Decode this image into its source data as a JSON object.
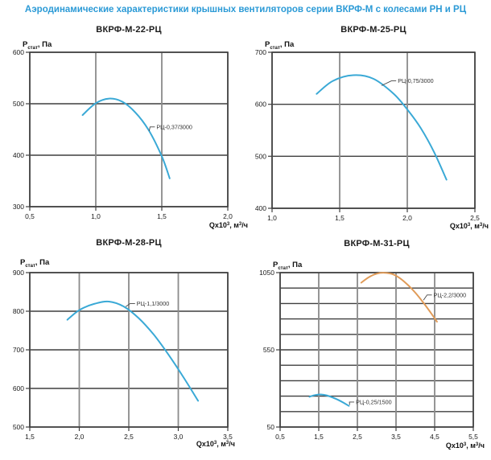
{
  "page_title": "Аэродинамические характеристики крышных вентиляторов серии ВКРФ-М с колесами РН и РЦ",
  "axis_labels": {
    "pressure": "Pстат, Па",
    "flow": "Qx10³, м³/ч",
    "pressure_segments": [
      {
        "t": "P"
      },
      {
        "t": "стат",
        "sub": true
      },
      {
        "t": ", Па"
      }
    ],
    "flow_segments": [
      {
        "t": "Qx10"
      },
      {
        "t": "3",
        "sup": true
      },
      {
        "t": ", м"
      },
      {
        "t": "3",
        "sup": true
      },
      {
        "t": "/ч"
      }
    ]
  },
  "colors": {
    "title_accent": "#2b9ad6",
    "curve_cyan": "#3aa9d6",
    "curve_orange": "#e09b58",
    "grid_horizontal": "#3f3f3f",
    "grid_vertical": "#8b8b8b"
  },
  "chart_data": [
    {
      "type": "line",
      "title": "ВКРФ-М-22-РЦ",
      "xlabel": "Qx10³, м³/ч",
      "ylabel": "Pстат, Па",
      "xlim": [
        0.5,
        2.0
      ],
      "ylim": [
        300,
        600
      ],
      "grid": true,
      "x_grid": [
        0.5,
        1.0,
        1.5,
        2.0
      ],
      "y_grid": [
        300,
        400,
        500,
        600
      ],
      "x_ticks": [
        {
          "v": 0.5,
          "label": "0,5"
        },
        {
          "v": 1.0,
          "label": "1,0"
        },
        {
          "v": 1.5,
          "label": "1,5"
        },
        {
          "v": 2.0,
          "label": "2,0"
        }
      ],
      "y_ticks": [
        {
          "v": 600,
          "label": "600"
        },
        {
          "v": 500,
          "label": "500"
        },
        {
          "v": 400,
          "label": "400"
        },
        {
          "v": 300,
          "label": "300"
        }
      ],
      "series": [
        {
          "name": "РЦ-0,37/3000",
          "color": "#3aa9d6",
          "points": [
            [
              0.9,
              478
            ],
            [
              1.0,
              501
            ],
            [
              1.1,
              510
            ],
            [
              1.2,
              504
            ],
            [
              1.3,
              483
            ],
            [
              1.4,
              449
            ],
            [
              1.5,
              398
            ],
            [
              1.56,
              355
            ]
          ],
          "label": {
            "text": "РЦ-0,37/3000",
            "x": 1.46,
            "y": 455,
            "ax": 1.405,
            "ay": 447
          }
        }
      ]
    },
    {
      "type": "line",
      "title": "ВКРФ-М-25-РЦ",
      "xlabel": "Qx10³, м³/ч",
      "ylabel": "Pстат, Па",
      "xlim": [
        1.0,
        2.5
      ],
      "ylim": [
        400,
        700
      ],
      "grid": true,
      "x_grid": [
        1.0,
        1.5,
        2.0,
        2.5
      ],
      "y_grid": [
        400,
        500,
        600,
        700
      ],
      "x_ticks": [
        {
          "v": 1.0,
          "label": "1,0"
        },
        {
          "v": 1.5,
          "label": "1,5"
        },
        {
          "v": 2.0,
          "label": "2,0"
        },
        {
          "v": 2.5,
          "label": "2,5"
        }
      ],
      "y_ticks": [
        {
          "v": 700,
          "label": "700"
        },
        {
          "v": 600,
          "label": "600"
        },
        {
          "v": 500,
          "label": "500"
        },
        {
          "v": 400,
          "label": "400"
        }
      ],
      "series": [
        {
          "name": "РЦ-0,75/3000",
          "color": "#3aa9d6",
          "points": [
            [
              1.33,
              620
            ],
            [
              1.45,
              645
            ],
            [
              1.6,
              656
            ],
            [
              1.75,
              649
            ],
            [
              1.9,
              620
            ],
            [
              2.0,
              590
            ],
            [
              2.1,
              554
            ],
            [
              2.2,
              507
            ],
            [
              2.29,
              455
            ]
          ],
          "label": {
            "text": "РЦ-0,75/3000",
            "x": 1.93,
            "y": 645,
            "ax": 1.81,
            "ay": 636
          }
        }
      ]
    },
    {
      "type": "line",
      "title": "ВКРФ-М-28-РЦ",
      "xlabel": "Qx10³, м³/ч",
      "ylabel": "Pстат, Па",
      "xlim": [
        1.5,
        3.5
      ],
      "ylim": [
        500,
        900
      ],
      "grid": true,
      "x_grid": [
        1.5,
        2.0,
        2.5,
        3.0,
        3.5
      ],
      "y_grid": [
        500,
        600,
        700,
        800,
        900
      ],
      "x_ticks": [
        {
          "v": 1.5,
          "label": "1,5"
        },
        {
          "v": 2.0,
          "label": "2,0"
        },
        {
          "v": 2.5,
          "label": "2,5"
        },
        {
          "v": 3.0,
          "label": "3,0"
        },
        {
          "v": 3.5,
          "label": "3,5"
        }
      ],
      "y_ticks": [
        {
          "v": 900,
          "label": "900"
        },
        {
          "v": 800,
          "label": "800"
        },
        {
          "v": 700,
          "label": "700"
        },
        {
          "v": 600,
          "label": "600"
        },
        {
          "v": 500,
          "label": "500"
        }
      ],
      "series": [
        {
          "name": "РЦ-1,1/3000",
          "color": "#3aa9d6",
          "points": [
            [
              1.88,
              778
            ],
            [
              2.0,
              803
            ],
            [
              2.15,
              819
            ],
            [
              2.3,
              825
            ],
            [
              2.45,
              812
            ],
            [
              2.6,
              782
            ],
            [
              2.75,
              740
            ],
            [
              2.9,
              688
            ],
            [
              3.05,
              630
            ],
            [
              3.2,
              568
            ]
          ],
          "label": {
            "text": "РЦ-1,1/3000",
            "x": 2.58,
            "y": 820,
            "ax": 2.47,
            "ay": 812
          }
        }
      ]
    },
    {
      "type": "line",
      "title": "ВКРФ-М-31-РЦ",
      "xlabel": "Qx10³, м³/ч",
      "ylabel": "Pстат, Па",
      "xlim": [
        0.5,
        5.5
      ],
      "ylim": [
        50,
        1050
      ],
      "grid": true,
      "x_grid": [
        0.5,
        1.5,
        2.5,
        3.5,
        4.5,
        5.5
      ],
      "y_grid": [
        50,
        150,
        250,
        350,
        450,
        550,
        650,
        750,
        850,
        950,
        1050
      ],
      "x_ticks": [
        {
          "v": 0.5,
          "label": "0,5"
        },
        {
          "v": 1.5,
          "label": "1,5"
        },
        {
          "v": 2.5,
          "label": "2,5"
        },
        {
          "v": 3.5,
          "label": "3,5"
        },
        {
          "v": 4.5,
          "label": "4,5"
        },
        {
          "v": 5.5,
          "label": "5,5"
        }
      ],
      "y_ticks": [
        {
          "v": 1050,
          "label": "1050"
        },
        {
          "v": 550,
          "label": "550"
        },
        {
          "v": 50,
          "label": "50"
        }
      ],
      "series": [
        {
          "name": "РЦ-2,2/3000",
          "color": "#e09b58",
          "points": [
            [
              2.6,
              985
            ],
            [
              2.8,
              1021
            ],
            [
              3.0,
              1043
            ],
            [
              3.2,
              1049
            ],
            [
              3.4,
              1041
            ],
            [
              3.6,
              1014
            ],
            [
              3.8,
              972
            ],
            [
              4.0,
              920
            ],
            [
              4.2,
              858
            ],
            [
              4.4,
              790
            ],
            [
              4.56,
              732
            ]
          ],
          "label": {
            "text": "РЦ-2,2/3000",
            "x": 4.47,
            "y": 905,
            "ax": 4.21,
            "ay": 872
          }
        },
        {
          "name": "РЦ-0,25/1500",
          "color": "#3aa9d6",
          "points": [
            [
              1.26,
              246
            ],
            [
              1.4,
              257
            ],
            [
              1.55,
              261
            ],
            [
              1.7,
              255
            ],
            [
              1.85,
              242
            ],
            [
              2.0,
              226
            ],
            [
              2.15,
              206
            ],
            [
              2.28,
              187
            ]
          ],
          "label": {
            "text": "РЦ-0,25/1500",
            "x": 2.46,
            "y": 212,
            "ax": 2.3,
            "ay": 193
          }
        }
      ]
    }
  ]
}
